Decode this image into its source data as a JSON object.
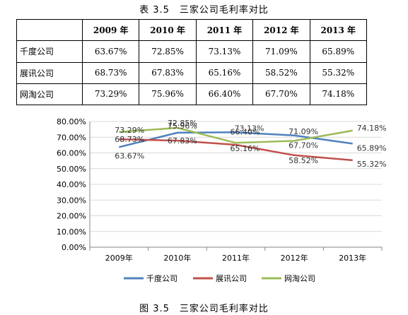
{
  "table": {
    "caption": "表 3.5　三家公司毛利率对比",
    "header": [
      "",
      "2009 年",
      "2010 年",
      "2011 年",
      "2012 年",
      "2013 年"
    ],
    "rows": [
      {
        "name": "千度公司",
        "cells": [
          "63.67%",
          "72.85%",
          "73.13%",
          "71.09%",
          "65.89%"
        ]
      },
      {
        "name": "展讯公司",
        "cells": [
          "68.73%",
          "67.83%",
          "65.16%",
          "58.52%",
          "55.32%"
        ]
      },
      {
        "name": "网淘公司",
        "cells": [
          "73.29%",
          "75.96%",
          "66.40%",
          "67.70%",
          "74.18%"
        ]
      }
    ]
  },
  "chart_data": {
    "type": "line",
    "categories": [
      "2009年",
      "2010年",
      "2011年",
      "2012年",
      "2013年"
    ],
    "ylim": [
      0,
      80
    ],
    "yticks": [
      "0.00%",
      "10.00%",
      "20.00%",
      "30.00%",
      "40.00%",
      "50.00%",
      "60.00%",
      "70.00%",
      "80.00%"
    ],
    "grid": true,
    "legend_position": "bottom",
    "series": [
      {
        "name": "千度公司",
        "color": "#4f81bd",
        "values": [
          63.67,
          72.85,
          73.13,
          71.09,
          65.89
        ],
        "labels": [
          "63.67%",
          "72.85%",
          "73.13%",
          "71.09%",
          "65.89%"
        ]
      },
      {
        "name": "展讯公司",
        "color": "#c0504d",
        "values": [
          68.73,
          67.83,
          65.16,
          58.52,
          55.32
        ],
        "labels": [
          "68.73%",
          "67.83%",
          "65.16%",
          "58.52%",
          "55.32%"
        ]
      },
      {
        "name": "网淘公司",
        "color": "#9bbb59",
        "values": [
          73.29,
          75.96,
          66.4,
          67.7,
          74.18
        ],
        "labels": [
          "73.29%",
          "75.96%",
          "66.40%",
          "67.70%",
          "74.18%"
        ]
      }
    ]
  },
  "figure_caption": "图 3.5　三家公司毛利率对比"
}
